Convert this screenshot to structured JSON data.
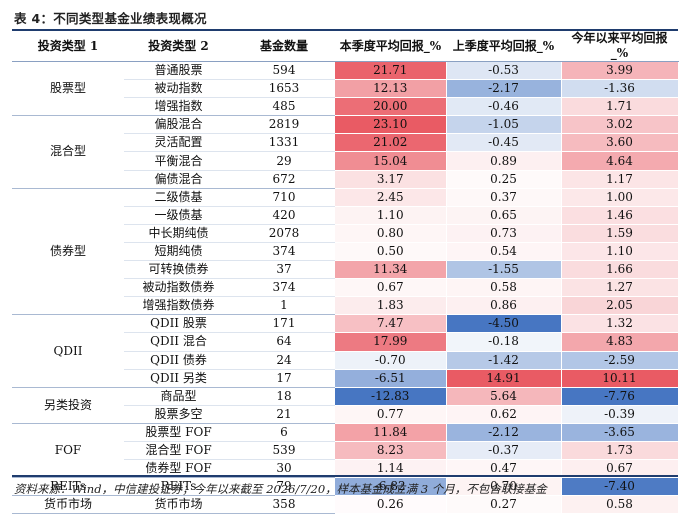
{
  "title": "表 4：不同类型基金业绩表现概况",
  "headers": {
    "type1": "投资类型 1",
    "type2": "投资类型 2",
    "count": "基金数量",
    "q_this": "本季度平均回报_%",
    "q_last": "上季度平均回报_%",
    "ytd": "今年以来平均回报_%"
  },
  "groups": [
    {
      "name": "股票型",
      "rows": [
        {
          "type2": "普通股票",
          "count": "594",
          "q_this": "21.71",
          "q_last": "-0.53",
          "ytd": "3.99"
        },
        {
          "type2": "被动指数",
          "count": "1653",
          "q_this": "12.13",
          "q_last": "-2.17",
          "ytd": "-1.36"
        },
        {
          "type2": "增强指数",
          "count": "485",
          "q_this": "20.00",
          "q_last": "-0.46",
          "ytd": "1.71"
        }
      ]
    },
    {
      "name": "混合型",
      "rows": [
        {
          "type2": "偏股混合",
          "count": "2819",
          "q_this": "23.10",
          "q_last": "-1.05",
          "ytd": "3.02"
        },
        {
          "type2": "灵活配置",
          "count": "1331",
          "q_this": "21.02",
          "q_last": "-0.45",
          "ytd": "3.60"
        },
        {
          "type2": "平衡混合",
          "count": "29",
          "q_this": "15.04",
          "q_last": "0.89",
          "ytd": "4.64"
        },
        {
          "type2": "偏债混合",
          "count": "672",
          "q_this": "3.17",
          "q_last": "0.25",
          "ytd": "1.17"
        }
      ]
    },
    {
      "name": "债券型",
      "rows": [
        {
          "type2": "二级债基",
          "count": "710",
          "q_this": "2.45",
          "q_last": "0.37",
          "ytd": "1.00"
        },
        {
          "type2": "一级债基",
          "count": "420",
          "q_this": "1.10",
          "q_last": "0.65",
          "ytd": "1.46"
        },
        {
          "type2": "中长期纯债",
          "count": "2078",
          "q_this": "0.80",
          "q_last": "0.73",
          "ytd": "1.59"
        },
        {
          "type2": "短期纯债",
          "count": "374",
          "q_this": "0.50",
          "q_last": "0.54",
          "ytd": "1.10"
        },
        {
          "type2": "可转换债券",
          "count": "37",
          "q_this": "11.34",
          "q_last": "-1.55",
          "ytd": "1.66"
        },
        {
          "type2": "被动指数债券",
          "count": "374",
          "q_this": "0.67",
          "q_last": "0.58",
          "ytd": "1.27"
        },
        {
          "type2": "增强指数债券",
          "count": "1",
          "q_this": "1.83",
          "q_last": "0.86",
          "ytd": "2.05"
        }
      ]
    },
    {
      "name": "QDII",
      "rows": [
        {
          "type2": "QDII 股票",
          "count": "171",
          "q_this": "7.47",
          "q_last": "-4.50",
          "ytd": "1.32"
        },
        {
          "type2": "QDII 混合",
          "count": "64",
          "q_this": "17.99",
          "q_last": "-0.18",
          "ytd": "4.83"
        },
        {
          "type2": "QDII 债券",
          "count": "24",
          "q_this": "-0.70",
          "q_last": "-1.42",
          "ytd": "-2.59"
        },
        {
          "type2": "QDII 另类",
          "count": "17",
          "q_this": "-6.51",
          "q_last": "14.91",
          "ytd": "10.11"
        }
      ]
    },
    {
      "name": "另类投资",
      "rows": [
        {
          "type2": "商品型",
          "count": "18",
          "q_this": "-12.83",
          "q_last": "5.64",
          "ytd": "-7.76"
        },
        {
          "type2": "股票多空",
          "count": "21",
          "q_this": "0.77",
          "q_last": "0.62",
          "ytd": "-0.39"
        }
      ]
    },
    {
      "name": "FOF",
      "rows": [
        {
          "type2": "股票型 FOF",
          "count": "6",
          "q_this": "11.84",
          "q_last": "-2.12",
          "ytd": "-3.65"
        },
        {
          "type2": "混合型 FOF",
          "count": "539",
          "q_this": "8.23",
          "q_last": "-0.37",
          "ytd": "1.73"
        },
        {
          "type2": "债券型 FOF",
          "count": "30",
          "q_this": "1.14",
          "q_last": "0.47",
          "ytd": "0.67"
        }
      ]
    },
    {
      "name": "REITs",
      "rows": [
        {
          "type2": "REITs",
          "count": "79",
          "q_this": "-6.82",
          "q_last": "0.70",
          "ytd": "-7.40"
        }
      ]
    },
    {
      "name": "货币市场",
      "rows": [
        {
          "type2": "货币市场",
          "count": "358",
          "q_this": "0.26",
          "q_last": "0.27",
          "ytd": "0.58"
        }
      ]
    }
  ],
  "colors": {
    "positive": "#e8525c",
    "negative": "#3d6fbf",
    "neutral": "#ffffff"
  },
  "note": "资料来源：Wind，中信建投证券；今年以来截至 2026/7/20，样本基金成立满 3 个月，不包含联接基金"
}
